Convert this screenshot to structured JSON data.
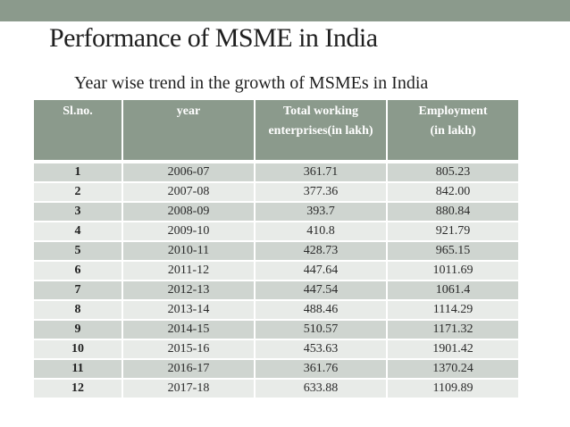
{
  "slide": {
    "title": "Performance of MSME in India",
    "subtitle": "Year wise trend in the growth of MSMEs in India",
    "colors": {
      "header": "#8b9a8c",
      "row_dark": "#cfd5d0",
      "row_light": "#e8ebe8"
    }
  },
  "table": {
    "headers": [
      [
        "Sl.no."
      ],
      [
        "year"
      ],
      [
        "Total working",
        "enterprises(in lakh)"
      ],
      [
        "Employment",
        "(in lakh)"
      ]
    ],
    "rows": [
      [
        "1",
        "2006-07",
        "361.71",
        "805.23"
      ],
      [
        "2",
        "2007-08",
        "377.36",
        "842.00"
      ],
      [
        "3",
        "2008-09",
        "393.7",
        "880.84"
      ],
      [
        "4",
        "2009-10",
        "410.8",
        "921.79"
      ],
      [
        "5",
        "2010-11",
        "428.73",
        "965.15"
      ],
      [
        "6",
        "2011-12",
        "447.64",
        "1011.69"
      ],
      [
        "7",
        "2012-13",
        "447.54",
        "1061.4"
      ],
      [
        "8",
        "2013-14",
        "488.46",
        "1114.29"
      ],
      [
        "9",
        "2014-15",
        "510.57",
        "1171.32"
      ],
      [
        "10",
        "2015-16",
        "453.63",
        "1901.42"
      ],
      [
        "11",
        "2016-17",
        "361.76",
        "1370.24"
      ],
      [
        "12",
        "2017-18",
        "633.88",
        "1109.89"
      ]
    ]
  }
}
